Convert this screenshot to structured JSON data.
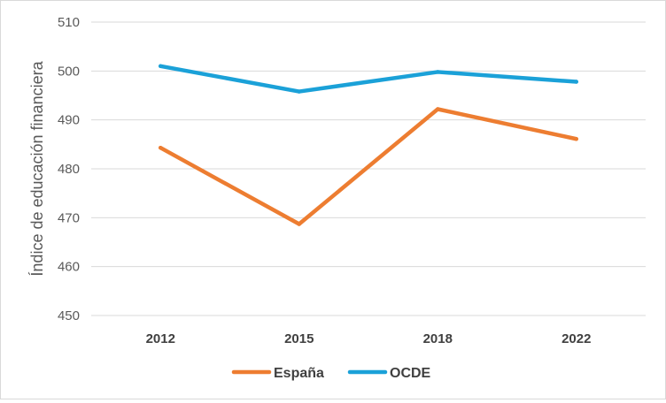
{
  "chart_data": {
    "type": "line",
    "title": "",
    "xlabel": "",
    "ylabel": "Índice de educación financiera",
    "categories": [
      "2012",
      "2015",
      "2018",
      "2022"
    ],
    "y_ticks": [
      "450",
      "460",
      "470",
      "480",
      "490",
      "500",
      "510"
    ],
    "ylim": [
      450,
      510
    ],
    "grid": true,
    "legend_position": "bottom",
    "series": [
      {
        "name": "España",
        "values": [
          484.3,
          468.7,
          492.2,
          486.1
        ],
        "color": "#ED7D31"
      },
      {
        "name": "OCDE",
        "values": [
          501.0,
          495.8,
          499.8,
          497.8
        ],
        "color": "#1BA1D8"
      }
    ]
  }
}
